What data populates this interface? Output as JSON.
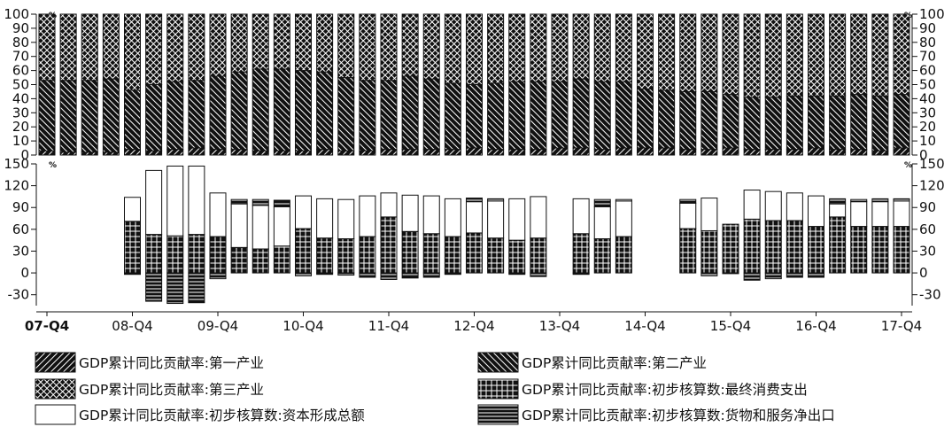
{
  "chart_data": [
    {
      "type": "bar",
      "stacked": true,
      "unit": "%",
      "ylim": [
        0,
        100
      ],
      "yticks": [
        0,
        10,
        20,
        30,
        40,
        50,
        60,
        70,
        80,
        90,
        100
      ],
      "categories": [
        "07-Q4",
        "08-Q1",
        "08-Q2",
        "08-Q3",
        "08-Q4",
        "09-Q1",
        "09-Q2",
        "09-Q3",
        "09-Q4",
        "10-Q1",
        "10-Q2",
        "10-Q3",
        "10-Q4",
        "11-Q1",
        "11-Q2",
        "11-Q3",
        "11-Q4",
        "12-Q1",
        "12-Q2",
        "12-Q3",
        "12-Q4",
        "13-Q1",
        "13-Q2",
        "13-Q3",
        "13-Q4",
        "14-Q1",
        "14-Q2",
        "14-Q3",
        "14-Q4",
        "15-Q1",
        "15-Q2",
        "15-Q3",
        "15-Q4",
        "16-Q1",
        "16-Q2",
        "16-Q3",
        "16-Q4",
        "17-Q1",
        "17-Q2",
        "17-Q3",
        "17-Q4"
      ],
      "series": [
        {
          "name": "GDP累计同比贡献率:第一产业",
          "pattern": "backslash",
          "values": [
            3,
            2,
            2,
            2,
            4,
            3,
            4,
            5,
            4,
            4,
            3,
            3,
            3,
            4,
            3,
            3,
            4,
            4,
            4,
            4,
            5,
            4,
            4,
            4,
            5,
            5,
            4,
            5,
            5,
            5,
            4,
            4,
            5,
            4,
            4,
            4,
            5,
            4,
            4,
            3,
            5
          ]
        },
        {
          "name": "GDP累计同比贡献率:第二产业",
          "pattern": "slash",
          "values": [
            50,
            51,
            51,
            52,
            42,
            47,
            48,
            48,
            52,
            55,
            58,
            58,
            57,
            55,
            52,
            50,
            49,
            52,
            50,
            47,
            45,
            47,
            48,
            48,
            47,
            49,
            48,
            47,
            42,
            41,
            41,
            41,
            38,
            37,
            37,
            38,
            37,
            38,
            39,
            39,
            38
          ]
        },
        {
          "name": "GDP累计同比贡献率:第三产业",
          "pattern": "crosshatch",
          "values": [
            47,
            47,
            47,
            46,
            54,
            50,
            48,
            47,
            44,
            41,
            39,
            39,
            40,
            41,
            45,
            47,
            47,
            44,
            46,
            49,
            50,
            49,
            48,
            48,
            48,
            46,
            48,
            48,
            53,
            54,
            55,
            55,
            57,
            59,
            59,
            58,
            58,
            58,
            57,
            58,
            57
          ]
        }
      ]
    },
    {
      "type": "bar",
      "stacked": true,
      "unit": "%",
      "ylim": [
        -45,
        150
      ],
      "yticks": [
        -30,
        0,
        30,
        60,
        90,
        120,
        150
      ],
      "categories": [
        "07-Q4",
        "08-Q1",
        "08-Q2",
        "08-Q3",
        "08-Q4",
        "09-Q1",
        "09-Q2",
        "09-Q3",
        "09-Q4",
        "10-Q1",
        "10-Q2",
        "10-Q3",
        "10-Q4",
        "11-Q1",
        "11-Q2",
        "11-Q3",
        "11-Q4",
        "12-Q1",
        "12-Q2",
        "12-Q3",
        "12-Q4",
        "13-Q1",
        "13-Q2",
        "13-Q3",
        "13-Q4",
        "14-Q1",
        "14-Q2",
        "14-Q3",
        "14-Q4",
        "15-Q1",
        "15-Q2",
        "15-Q3",
        "15-Q4",
        "16-Q1",
        "16-Q2",
        "16-Q3",
        "16-Q4",
        "17-Q1",
        "17-Q2",
        "17-Q3",
        "17-Q4"
      ],
      "x_tick_labels": [
        "07-Q4",
        "08-Q4",
        "09-Q4",
        "10-Q4",
        "11-Q4",
        "12-Q4",
        "13-Q4",
        "14-Q4",
        "15-Q4",
        "16-Q4",
        "17-Q4"
      ],
      "series": [
        {
          "name": "GDP累计同比贡献率:初步核算数:最终消费支出",
          "pattern": "grid",
          "values": [
            null,
            null,
            null,
            null,
            71,
            53,
            51,
            53,
            50,
            35,
            33,
            37,
            61,
            48,
            47,
            50,
            77,
            57,
            54,
            50,
            55,
            48,
            45,
            48,
            null,
            54,
            47,
            50,
            null,
            null,
            61,
            58,
            67,
            74,
            72,
            72,
            64,
            77,
            64,
            64,
            64
          ]
        },
        {
          "name": "GDP累计同比贡献率:初步核算数:资本形成总额",
          "pattern": "white",
          "values": [
            null,
            null,
            null,
            null,
            33,
            88,
            96,
            94,
            60,
            60,
            60,
            54,
            45,
            54,
            54,
            56,
            33,
            50,
            52,
            52,
            43,
            51,
            57,
            57,
            null,
            48,
            44,
            49,
            null,
            null,
            35,
            45,
            0,
            40,
            40,
            38,
            42,
            18,
            34,
            34,
            35
          ]
        },
        {
          "name": "GDP累计同比贡献率:初步核算数:货物和服务净出口",
          "pattern": "hlines",
          "values": [
            null,
            null,
            null,
            null,
            -2,
            -39,
            -42,
            -41,
            -8,
            6,
            8,
            9,
            -4,
            -2,
            -3,
            -6,
            -9,
            -7,
            -6,
            -2,
            5,
            3,
            -2,
            -5,
            null,
            -2,
            10,
            2,
            null,
            null,
            5,
            -4,
            -1,
            -10,
            -8,
            -6,
            -6,
            7,
            3,
            4,
            3
          ]
        }
      ]
    }
  ],
  "legend": {
    "items": [
      {
        "label": "GDP累计同比贡献率:第一产业",
        "pattern": "backslash"
      },
      {
        "label": "GDP累计同比贡献率:第二产业",
        "pattern": "slash"
      },
      {
        "label": "GDP累计同比贡献率:第三产业",
        "pattern": "crosshatch"
      },
      {
        "label": "GDP累计同比贡献率:初步核算数:最终消费支出",
        "pattern": "grid"
      },
      {
        "label": "GDP累计同比贡献率:初步核算数:资本形成总额",
        "pattern": "white"
      },
      {
        "label": "GDP累计同比贡献率:初步核算数:货物和服务净出口",
        "pattern": "hlines"
      }
    ]
  }
}
